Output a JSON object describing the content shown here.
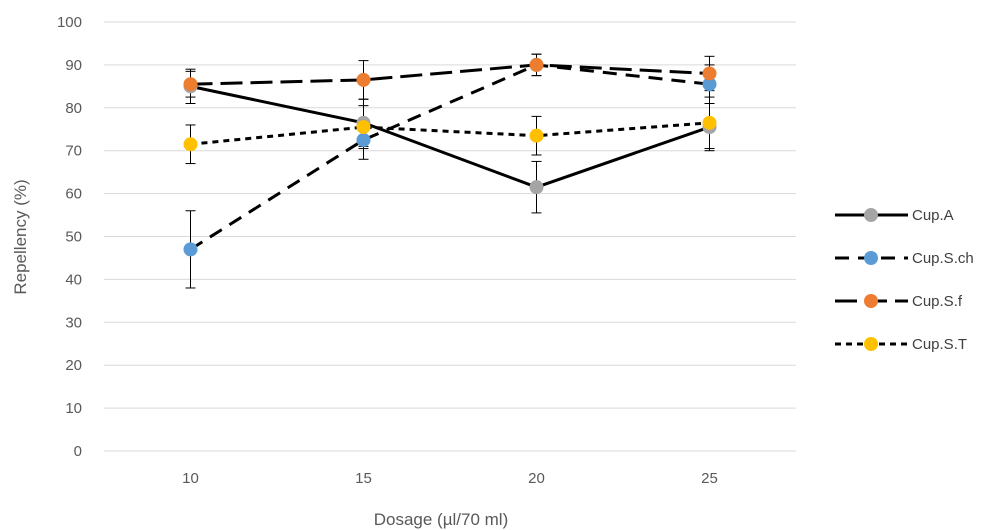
{
  "chart_data": {
    "type": "line",
    "title": "",
    "xlabel": "Dosage (µl/70 ml)",
    "ylabel": "Repellency (%)",
    "categories": [
      "10",
      "15",
      "20",
      "25"
    ],
    "ylim": [
      0,
      100
    ],
    "yticks": [
      "0",
      "10",
      "20",
      "30",
      "40",
      "50",
      "60",
      "70",
      "80",
      "90",
      "100"
    ],
    "grid": true,
    "legend_position": "right",
    "series": [
      {
        "name": "Cup.A",
        "values": [
          85,
          76.5,
          61.5,
          75.5
        ],
        "errors": [
          4,
          5.5,
          6,
          5.5
        ],
        "color": "#a5a5a5",
        "line_color": "#000000",
        "dash": "solid"
      },
      {
        "name": "Cup.S.ch",
        "values": [
          47,
          72.5,
          90,
          85.5
        ],
        "errors": [
          9,
          4.5,
          2.5,
          4.5
        ],
        "color": "#5b9bd5",
        "line_color": "#000000",
        "dash": "dash"
      },
      {
        "name": "Cup.S.f",
        "values": [
          85.5,
          86.5,
          90,
          88
        ],
        "errors": [
          3,
          4.5,
          2.5,
          4
        ],
        "color": "#ed7d31",
        "line_color": "#000000",
        "dash": "longdash"
      },
      {
        "name": "Cup.S.T",
        "values": [
          71.5,
          75.5,
          73.5,
          76.5
        ],
        "errors": [
          4.5,
          5,
          4.5,
          6
        ],
        "color": "#ffc000",
        "line_color": "#000000",
        "dash": "dot"
      }
    ]
  }
}
